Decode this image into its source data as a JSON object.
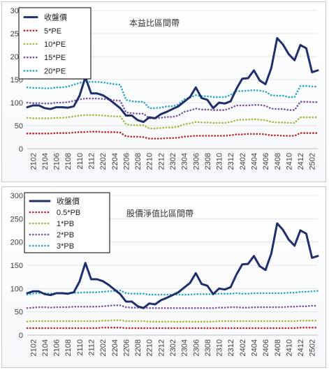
{
  "colors": {
    "price": "#1f2f6b",
    "band1": "#c0282d",
    "band2": "#9bbb3c",
    "band3": "#7a55a0",
    "band4": "#2aa7c9",
    "grid": "#e3e3e3"
  },
  "chart_data": [
    {
      "type": "line",
      "title": "本益比區間帶",
      "ylim": [
        0,
        300
      ],
      "yticks": [
        0,
        50,
        100,
        150,
        200,
        250,
        300
      ],
      "grid": true,
      "legend_position": "top-left",
      "x": [
        "2101",
        "2102",
        "2103",
        "2104",
        "2105",
        "2106",
        "2107",
        "2108",
        "2109",
        "2110",
        "2111",
        "2112",
        "2201",
        "2202",
        "2203",
        "2204",
        "2205",
        "2206",
        "2207",
        "2208",
        "2209",
        "2210",
        "2211",
        "2212",
        "2301",
        "2302",
        "2303",
        "2304",
        "2305",
        "2306",
        "2307",
        "2308",
        "2309",
        "2310",
        "2311",
        "2312",
        "2401",
        "2402",
        "2403",
        "2404",
        "2405",
        "2406",
        "2407",
        "2408",
        "2409",
        "2410",
        "2411",
        "2412",
        "2501",
        "2502",
        "2503"
      ],
      "xtick_labels": [
        "2102",
        "2104",
        "2106",
        "2108",
        "2110",
        "2112",
        "2202",
        "2204",
        "2206",
        "2208",
        "2210",
        "2212",
        "2302",
        "2304",
        "2306",
        "2308",
        "2310",
        "2312",
        "2402",
        "2404",
        "2406",
        "2408",
        "2410",
        "2412",
        "2502"
      ],
      "series": [
        {
          "name": "收盤價",
          "style": "solid",
          "values": [
            90,
            94,
            94,
            88,
            86,
            90,
            90,
            89,
            92,
            115,
            155,
            120,
            120,
            116,
            108,
            98,
            88,
            72,
            72,
            62,
            58,
            68,
            66,
            75,
            80,
            86,
            92,
            102,
            112,
            133,
            110,
            106,
            88,
            100,
            98,
            103,
            130,
            152,
            153,
            170,
            148,
            140,
            175,
            240,
            226,
            205,
            192,
            225,
            218,
            166,
            170
          ]
        },
        {
          "name": "5*PE",
          "style": "dotted",
          "values": [
            33,
            33,
            33,
            33,
            33,
            34,
            34,
            34,
            35,
            36,
            36,
            37,
            37,
            36,
            36,
            36,
            35,
            27,
            26,
            26,
            25,
            22,
            22,
            22,
            23,
            23,
            24,
            26,
            27,
            28,
            28,
            28,
            28,
            28,
            28,
            29,
            31,
            31,
            32,
            32,
            32,
            31,
            29,
            29,
            28,
            28,
            28,
            34,
            34,
            34,
            34
          ]
        },
        {
          "name": "10*PE",
          "style": "dotted",
          "values": [
            67,
            66,
            66,
            66,
            66,
            67,
            67,
            68,
            70,
            72,
            73,
            73,
            73,
            72,
            71,
            70,
            70,
            53,
            51,
            51,
            51,
            44,
            44,
            45,
            46,
            46,
            48,
            53,
            55,
            58,
            57,
            57,
            56,
            56,
            56,
            58,
            62,
            63,
            63,
            64,
            63,
            62,
            58,
            57,
            57,
            56,
            56,
            68,
            68,
            68,
            68
          ]
        },
        {
          "name": "15*PE",
          "style": "dotted",
          "values": [
            100,
            99,
            99,
            98,
            98,
            100,
            100,
            101,
            104,
            107,
            109,
            109,
            109,
            108,
            107,
            105,
            104,
            79,
            77,
            76,
            76,
            66,
            66,
            67,
            69,
            69,
            72,
            80,
            83,
            87,
            85,
            85,
            84,
            84,
            84,
            88,
            94,
            94,
            94,
            95,
            95,
            93,
            87,
            86,
            86,
            84,
            84,
            102,
            102,
            101,
            101
          ]
        },
        {
          "name": "20*PE",
          "style": "dotted",
          "values": [
            133,
            132,
            132,
            131,
            131,
            133,
            133,
            135,
            139,
            143,
            145,
            145,
            145,
            144,
            142,
            140,
            139,
            106,
            103,
            102,
            102,
            88,
            88,
            89,
            92,
            92,
            96,
            107,
            111,
            116,
            114,
            114,
            112,
            112,
            112,
            117,
            125,
            125,
            126,
            127,
            126,
            124,
            116,
            115,
            115,
            112,
            112,
            136,
            136,
            135,
            135
          ]
        }
      ]
    },
    {
      "type": "line",
      "title": "股價淨值比區間帶",
      "ylim": [
        0,
        300
      ],
      "yticks": [
        0,
        50,
        100,
        150,
        200,
        250,
        300
      ],
      "grid": true,
      "legend_position": "top-left",
      "x": [
        "2101",
        "2102",
        "2103",
        "2104",
        "2105",
        "2106",
        "2107",
        "2108",
        "2109",
        "2110",
        "2111",
        "2112",
        "2201",
        "2202",
        "2203",
        "2204",
        "2205",
        "2206",
        "2207",
        "2208",
        "2209",
        "2210",
        "2211",
        "2212",
        "2301",
        "2302",
        "2303",
        "2304",
        "2305",
        "2306",
        "2307",
        "2308",
        "2309",
        "2310",
        "2311",
        "2312",
        "2401",
        "2402",
        "2403",
        "2404",
        "2405",
        "2406",
        "2407",
        "2408",
        "2409",
        "2410",
        "2411",
        "2412",
        "2501",
        "2502",
        "2503"
      ],
      "xtick_labels": [
        "2102",
        "2104",
        "2106",
        "2108",
        "2110",
        "2112",
        "2202",
        "2204",
        "2206",
        "2208",
        "2210",
        "2212",
        "2302",
        "2304",
        "2306",
        "2308",
        "2310",
        "2312",
        "2402",
        "2404",
        "2406",
        "2408",
        "2410",
        "2412",
        "2502"
      ],
      "series": [
        {
          "name": "收盤價",
          "style": "solid",
          "values": [
            90,
            94,
            94,
            88,
            86,
            90,
            90,
            89,
            92,
            115,
            155,
            120,
            120,
            116,
            108,
            98,
            88,
            72,
            72,
            62,
            58,
            68,
            66,
            75,
            80,
            86,
            92,
            102,
            112,
            133,
            110,
            106,
            88,
            100,
            98,
            103,
            130,
            152,
            153,
            170,
            148,
            140,
            175,
            240,
            226,
            205,
            192,
            225,
            218,
            166,
            170
          ]
        },
        {
          "name": "0.5*PB",
          "style": "dotted",
          "values": [
            15,
            15,
            15,
            15,
            15,
            15,
            15,
            15,
            15,
            15,
            15,
            15,
            15,
            16,
            16,
            16,
            16,
            15,
            15,
            15,
            15,
            15,
            15,
            15,
            15,
            15,
            15,
            15,
            15,
            15,
            15,
            15,
            15,
            15,
            15,
            15,
            15,
            15,
            15,
            15,
            15,
            15,
            15,
            15,
            15,
            15,
            15,
            16,
            16,
            16,
            16
          ]
        },
        {
          "name": "1*PB",
          "style": "dotted",
          "values": [
            29,
            30,
            30,
            30,
            30,
            30,
            30,
            30,
            30,
            30,
            30,
            30,
            30,
            31,
            31,
            32,
            32,
            30,
            30,
            30,
            30,
            29,
            29,
            29,
            29,
            29,
            29,
            29,
            29,
            29,
            29,
            29,
            29,
            30,
            30,
            30,
            30,
            30,
            30,
            30,
            30,
            30,
            30,
            30,
            30,
            30,
            30,
            31,
            31,
            31,
            31
          ]
        },
        {
          "name": "2*PB",
          "style": "dotted",
          "values": [
            58,
            59,
            60,
            60,
            59,
            60,
            60,
            60,
            61,
            61,
            61,
            61,
            61,
            62,
            63,
            64,
            64,
            60,
            59,
            59,
            59,
            58,
            58,
            58,
            58,
            58,
            58,
            58,
            58,
            58,
            58,
            58,
            58,
            59,
            59,
            60,
            60,
            59,
            59,
            60,
            60,
            60,
            60,
            60,
            60,
            61,
            61,
            62,
            62,
            63,
            63
          ]
        },
        {
          "name": "3*PB",
          "style": "dotted",
          "values": [
            87,
            89,
            90,
            90,
            89,
            90,
            90,
            90,
            91,
            91,
            92,
            92,
            92,
            93,
            94,
            95,
            96,
            90,
            89,
            89,
            89,
            87,
            87,
            87,
            87,
            87,
            87,
            87,
            87,
            88,
            88,
            88,
            88,
            89,
            89,
            89,
            90,
            89,
            89,
            90,
            90,
            90,
            90,
            90,
            90,
            91,
            91,
            93,
            93,
            94,
            95
          ]
        }
      ]
    }
  ]
}
